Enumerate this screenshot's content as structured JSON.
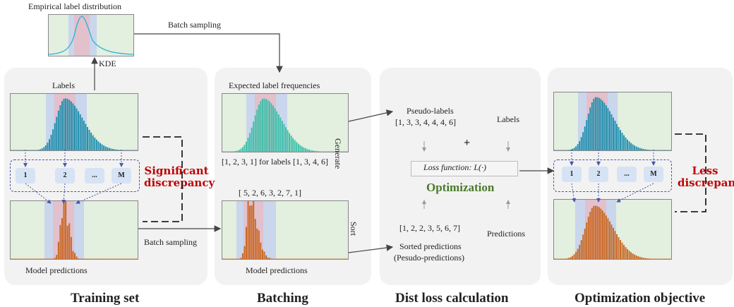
{
  "top": {
    "title": "Empirical label distribution",
    "kde": "KDE",
    "batch_sampling_top": "Batch sampling"
  },
  "training": {
    "labels": "Labels",
    "model_predictions": "Model predictions",
    "chips": [
      "1",
      "2",
      "...",
      "M"
    ],
    "discrepancy": "Significant discrepancy",
    "batch_sampling": "Batch sampling",
    "title": "Training set"
  },
  "batching": {
    "expected": "Expected label frequencies",
    "generate": "Generate",
    "freq_caption": "[1, 2, 3, 1] for labels [1, 3, 4, 6]",
    "pred_list": "[ 5, 2, 6, 3, 2, 7, 1]",
    "sort": "Sort",
    "model_predictions": "Model predictions",
    "title": "Batching"
  },
  "loss": {
    "pseudo_labels": "Pseudo-labels",
    "pseudo_list": "[1, 3, 3, 4, 4, 4, 6]",
    "labels": "Labels",
    "plus": "+",
    "loss_fn": "Loss function: L(·)",
    "optimization": "Optimization",
    "sorted_list": "[1, 2, 2, 3, 5, 6, 7]",
    "predictions": "Predictions",
    "sorted_predictions": "Sorted predictions",
    "pseudo_predictions": "(Pesudo-predictions)",
    "title": "Dist loss calculation"
  },
  "objective": {
    "chips": [
      "1",
      "2",
      "...",
      "M"
    ],
    "discrepancy": "Less discrepancy",
    "title": "Optimization objective"
  },
  "colors": {
    "panel": "#f2f2f2",
    "chart_bg": "#e3efdf",
    "band_blue": "#c9d6ec",
    "band_red": "#e2c0cc",
    "teal_bars": "#1f8fae",
    "aqua_bars": "#3cbfa8",
    "orange_bars": "#c9661f",
    "kde_line": "#2fb0d8",
    "discrepancy_red": "#c00000",
    "optimization_green": "#4a7a2a"
  }
}
